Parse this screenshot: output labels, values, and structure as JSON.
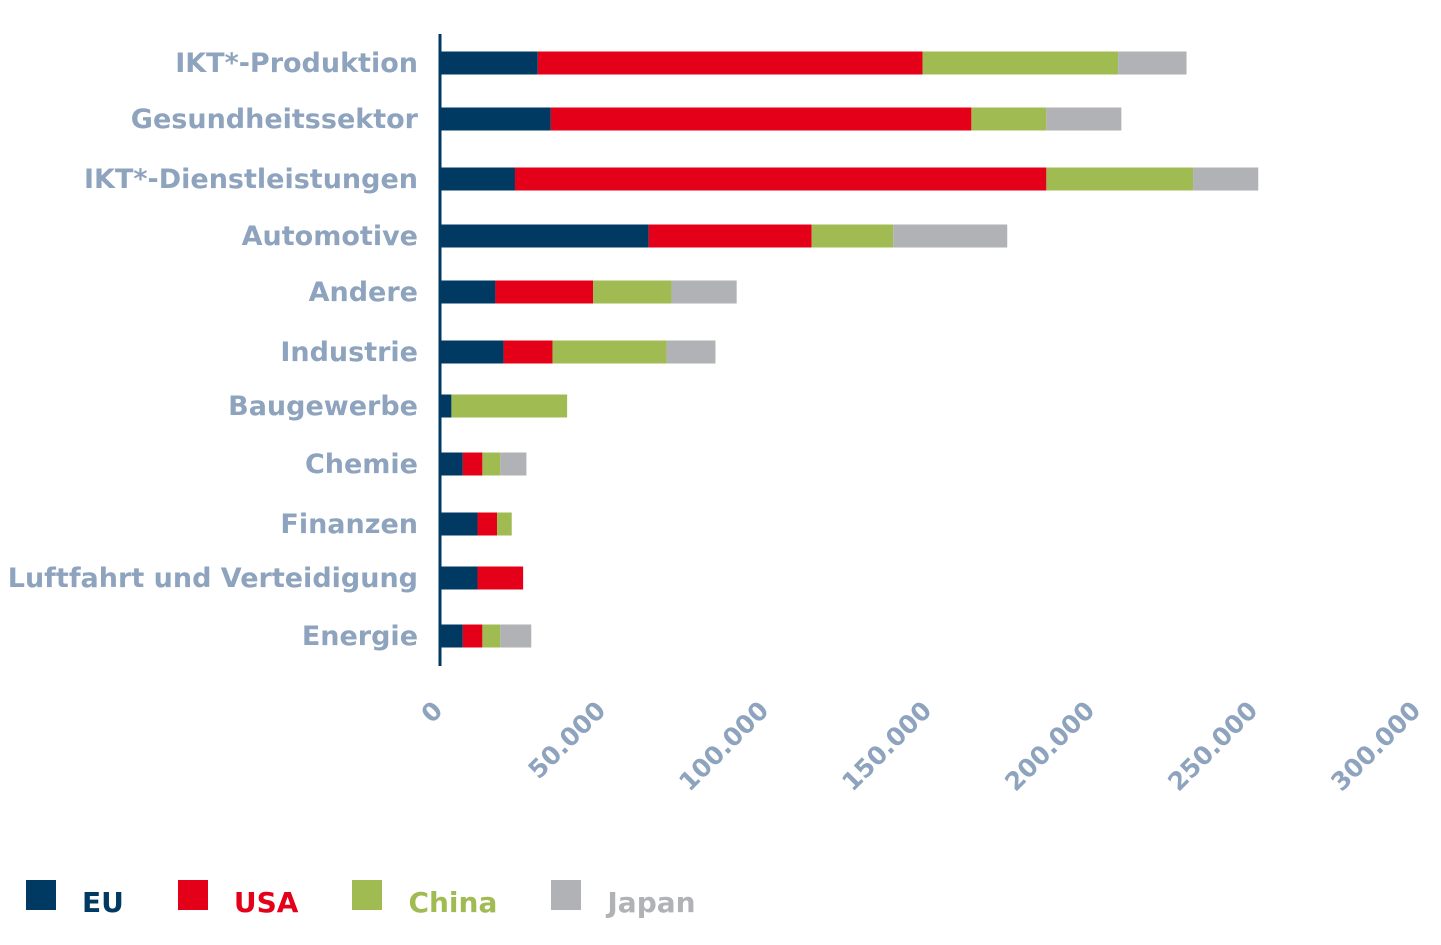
{
  "chart_data": {
    "type": "bar",
    "orientation": "horizontal",
    "stacked": true,
    "title": "",
    "xlabel": "",
    "ylabel": "",
    "xlim": [
      0,
      300000
    ],
    "x_ticks": [
      0,
      50000,
      100000,
      150000,
      200000,
      250000,
      300000
    ],
    "x_tick_labels": [
      "0",
      "50.000",
      "100.000",
      "150.000",
      "200.000",
      "250.000",
      "300.000"
    ],
    "categories": [
      "IKT*-Produktion",
      "Gesundheitssektor",
      "IKT*-Dienstleistungen",
      "Automotive",
      "Andere",
      "Industrie",
      "Baugewerbe",
      "Chemie",
      "Finanzen",
      "Luftfahrt und Verteidigung",
      "Energie"
    ],
    "series": [
      {
        "name": "EU",
        "color": "#003a63",
        "values": [
          30000,
          34000,
          23000,
          64000,
          17000,
          19500,
          3500,
          7000,
          11500,
          11500,
          7000
        ]
      },
      {
        "name": "USA",
        "color": "#e30018",
        "values": [
          118000,
          129000,
          163000,
          50000,
          30000,
          15000,
          0,
          6000,
          6000,
          14000,
          6000
        ]
      },
      {
        "name": "China",
        "color": "#a0bb52",
        "values": [
          60000,
          23000,
          45000,
          25000,
          24000,
          35000,
          35500,
          5500,
          4500,
          0,
          5500
        ]
      },
      {
        "name": "Japan",
        "color": "#b1b2b6",
        "values": [
          21000,
          23000,
          20000,
          35000,
          20000,
          15000,
          0,
          8000,
          0,
          0,
          9500
        ]
      }
    ],
    "legend_position": "bottom-left",
    "grid": false
  },
  "legend_text_colors": {
    "EU": "#003a63",
    "USA": "#e30018",
    "China": "#a0bb52",
    "Japan": "#b1b2b6"
  }
}
